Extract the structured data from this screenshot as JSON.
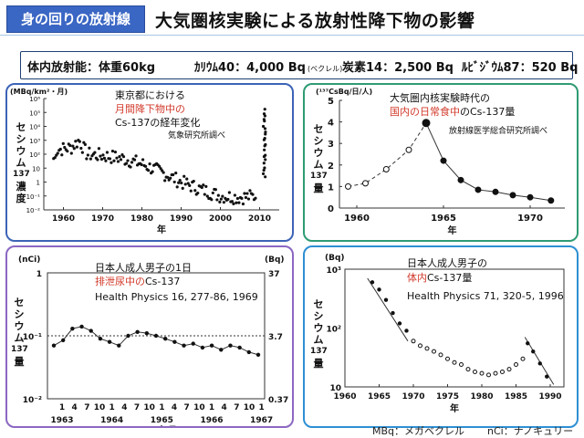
{
  "header": {
    "badge": "身の回りの放射線",
    "title": "大気圏核実験による放射性降下物の影響"
  },
  "infobar": {
    "item1": "体内放射能：体重60kg",
    "item2": "ｶﾘｳﾑ40：4,000 Bq",
    "item2_small": "(ベクレル)",
    "item3": "炭素14：2,500 Bq",
    "item4": "ﾙﾋﾞｼﾞｳﾑ87：520 Bq"
  },
  "footer": {
    "mbq": "MBq：メガベクレル",
    "nci": "nCi：ナノキュリー"
  },
  "chart_data": [
    {
      "id": "tokyo_fallout",
      "type": "scatter",
      "unit_label": "(MBq/km²・月)",
      "ylabel_chars": [
        "セ",
        "シ",
        "ウ",
        "ム",
        "137",
        "濃",
        "度"
      ],
      "xlabel": "年",
      "annotation_lines": [
        "東京都における",
        "月間降下物中の",
        "Cs-137の経年変化"
      ],
      "source": "気象研究所調べ",
      "y_scale": "log",
      "ylim": [
        0.01,
        1000000
      ],
      "y_ticks": [
        "10⁻²",
        "10⁻¹",
        "1",
        "10",
        "10²",
        "10³",
        "10⁴",
        "10⁵",
        "10⁶"
      ],
      "xlim": [
        1955,
        2015
      ],
      "x_ticks": [
        "1960",
        "1970",
        "1980",
        "1990",
        "2000",
        "2010"
      ],
      "series_summary": {
        "x": [
          1958,
          1962,
          1964,
          1966,
          1970,
          1975,
          1980,
          1985,
          1990,
          1995,
          2000,
          2005,
          2010,
          2011,
          2012
        ],
        "y": [
          200,
          300,
          1000,
          100,
          80,
          50,
          20,
          5,
          1,
          0.3,
          0.1,
          0.08,
          0.1,
          300000,
          50
        ]
      }
    },
    {
      "id": "daily_diet",
      "type": "line",
      "unit_label": "(¹³⁷CsBq/日/人)",
      "ylabel_chars": [
        "セ",
        "シ",
        "ウ",
        "ム",
        "137",
        "量"
      ],
      "xlabel": "年",
      "annotation_lines": [
        "大気圏内核実験時代の",
        "国内の日常食中のCs-137量"
      ],
      "source": "放射線医学総合研究所調べ",
      "xlim": [
        1959,
        1972
      ],
      "ylim": [
        0,
        5
      ],
      "x_ticks": [
        "1960",
        "1965",
        "1970"
      ],
      "y_ticks": [
        "0",
        "1",
        "2",
        "3",
        "4",
        "5"
      ],
      "x": [
        1959.5,
        1960.5,
        1961.7,
        1963,
        1964,
        1965,
        1966,
        1967,
        1968,
        1969,
        1970,
        1971.2
      ],
      "y": [
        1.0,
        1.15,
        1.8,
        2.7,
        3.95,
        2.2,
        1.3,
        0.85,
        0.75,
        0.6,
        0.5,
        0.35
      ]
    },
    {
      "id": "urine_excretion",
      "type": "line",
      "left_unit": "(nCi)",
      "right_unit": "(Bq)",
      "ylabel_chars": [
        "セ",
        "シ",
        "ウ",
        "ム",
        "137",
        "量"
      ],
      "xlabel": "年月",
      "annotation_lines": [
        "日本人成人男子の1日",
        "排泄尿中のCs-137",
        "Health Physics 16, 277-86, 1969"
      ],
      "y_scale": "log",
      "ylim": [
        0.01,
        1
      ],
      "left_ticks": [
        "1",
        "10⁻¹",
        "10⁻²"
      ],
      "right_ticks": [
        "37",
        "3.7",
        "0.37"
      ],
      "month_ticks": [
        "1",
        "4",
        "7",
        "10",
        "1",
        "4",
        "7",
        "10",
        "1",
        "4",
        "7",
        "10",
        "1",
        "4",
        "7",
        "10",
        "1"
      ],
      "year_ticks": [
        "1963",
        "1964",
        "1965",
        "1966",
        "1967"
      ],
      "dotted_reference": 0.1,
      "y": [
        0.07,
        0.085,
        0.13,
        0.14,
        0.12,
        0.09,
        0.08,
        0.07,
        0.1,
        0.115,
        0.11,
        0.1,
        0.09,
        0.08,
        0.07,
        0.075,
        0.065,
        0.07,
        0.06,
        0.07,
        0.065,
        0.055,
        0.05
      ]
    },
    {
      "id": "body_content",
      "type": "scatter",
      "unit_label": "(Bq)",
      "ylabel_chars": [
        "セ",
        "シ",
        "ウ",
        "ム",
        "137",
        "量"
      ],
      "xlabel": "年",
      "annotation_lines": [
        "日本人成人男子の",
        "体内Cs-137量",
        "Health Physics 71, 320-5, 1996"
      ],
      "y_scale": "log",
      "ylim": [
        10,
        1000
      ],
      "y_ticks": [
        "10³",
        "10²",
        "10"
      ],
      "xlim": [
        1960,
        1992
      ],
      "x_ticks": [
        "1960",
        "1965",
        "1970",
        "1975",
        "1980",
        "1985",
        "1990"
      ],
      "filled_points": {
        "x": [
          1964,
          1965,
          1966,
          1967,
          1968,
          1969,
          1986.7,
          1987.5,
          1988.5,
          1989.5
        ],
        "y": [
          600,
          450,
          300,
          180,
          120,
          90,
          55,
          40,
          25,
          15
        ]
      },
      "open_points": {
        "x": [
          1970,
          1971,
          1972,
          1973,
          1974,
          1975,
          1976,
          1977,
          1978,
          1979,
          1980,
          1981,
          1982,
          1983,
          1984,
          1985,
          1986
        ],
        "y": [
          60,
          50,
          45,
          40,
          35,
          30,
          26,
          24,
          20,
          18,
          17,
          16,
          17,
          18,
          20,
          24,
          30
        ]
      }
    }
  ]
}
